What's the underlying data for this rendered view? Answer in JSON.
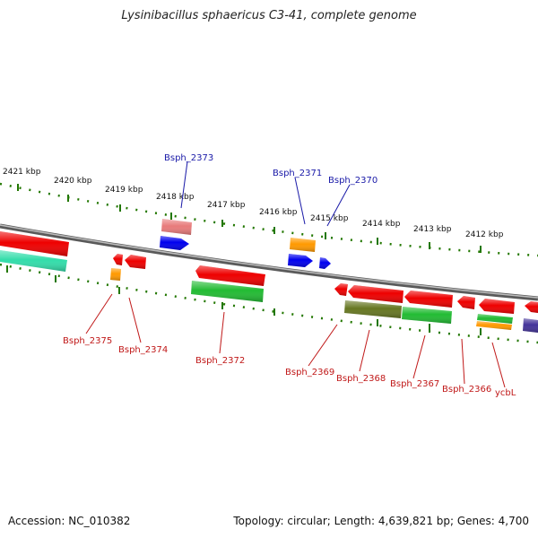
{
  "title": "Lysinibacillus sphaericus C3-41, complete genome",
  "accession": "Accession: NC_010382",
  "topology": "Topology: circular; Length: 4,639,821 bp; Genes: 4,700",
  "colors": {
    "red": "#ee0000",
    "pink": "#e87b7b",
    "blue": "#0000ee",
    "orange": "#ff9900",
    "green": "#22bb33",
    "mint": "#33ddaa",
    "olive": "#667722",
    "navy": "#443399",
    "tick": "#227700",
    "backbone": "#888888",
    "label_fwd": "#1a1aa8",
    "label_rev": "#c01818"
  },
  "scale_labels": [
    "2421 kbp",
    "2420 kbp",
    "2419 kbp",
    "2418 kbp",
    "2417 kbp",
    "2416 kbp",
    "2415 kbp",
    "2414 kbp",
    "2413 kbp",
    "2412 kbp"
  ],
  "genes_forward": [
    "Bsph_2373",
    "Bsph_2371",
    "Bsph_2370"
  ],
  "genes_reverse": [
    "Bsph_2375",
    "Bsph_2374",
    "Bsph_2372",
    "Bsph_2369",
    "Bsph_2368",
    "Bsph_2367",
    "Bsph_2366",
    "ycbL"
  ]
}
